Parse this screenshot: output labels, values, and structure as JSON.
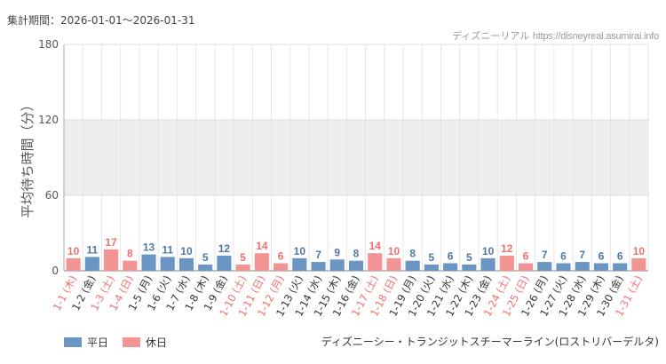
{
  "header": {
    "period_label": "集計期間：2026-01-01〜2026-01-31",
    "site_name": "ディズニーリアル",
    "site_url": "https://disneyreal.asumirai.info"
  },
  "attraction_name": "ディズニーシー・トランジットスチーマーライン(ロストリバーデルタ)",
  "legend": [
    {
      "label": "平日",
      "color": "#6b96c3"
    },
    {
      "label": "休日",
      "color": "#f39494"
    }
  ],
  "colors": {
    "weekday": "#6b96c3",
    "holiday": "#f39494",
    "weekday_text": "#4f77a4",
    "holiday_text": "#ef6f6f",
    "band": "#eeeeee"
  },
  "chart_data": {
    "type": "bar",
    "ylabel": "平均待ち時間（分）",
    "ylim": [
      0,
      180
    ],
    "yticks": [
      0,
      60,
      120,
      180
    ],
    "shaded_band": [
      60,
      120
    ],
    "categories": [
      "1-1 (木)",
      "1-2 (金)",
      "1-3 (土)",
      "1-4 (日)",
      "1-5 (月)",
      "1-6 (火)",
      "1-7 (水)",
      "1-8 (木)",
      "1-9 (金)",
      "1-10 (土)",
      "1-11 (日)",
      "1-12 (月)",
      "1-13 (火)",
      "1-14 (水)",
      "1-15 (木)",
      "1-16 (金)",
      "1-17 (土)",
      "1-18 (日)",
      "1-19 (月)",
      "1-20 (火)",
      "1-21 (水)",
      "1-22 (木)",
      "1-23 (金)",
      "1-24 (土)",
      "1-25 (日)",
      "1-26 (月)",
      "1-27 (火)",
      "1-28 (水)",
      "1-29 (木)",
      "1-30 (金)",
      "1-31 (土)"
    ],
    "values": [
      10,
      11,
      17,
      8,
      13,
      11,
      10,
      5,
      12,
      5,
      14,
      6,
      10,
      7,
      9,
      8,
      14,
      10,
      8,
      5,
      6,
      5,
      10,
      12,
      6,
      7,
      6,
      7,
      6,
      6,
      10
    ],
    "day_type": [
      "休日",
      "平日",
      "休日",
      "休日",
      "平日",
      "平日",
      "平日",
      "平日",
      "平日",
      "休日",
      "休日",
      "休日",
      "平日",
      "平日",
      "平日",
      "平日",
      "休日",
      "休日",
      "平日",
      "平日",
      "平日",
      "平日",
      "平日",
      "休日",
      "休日",
      "平日",
      "平日",
      "平日",
      "平日",
      "平日",
      "休日"
    ]
  }
}
